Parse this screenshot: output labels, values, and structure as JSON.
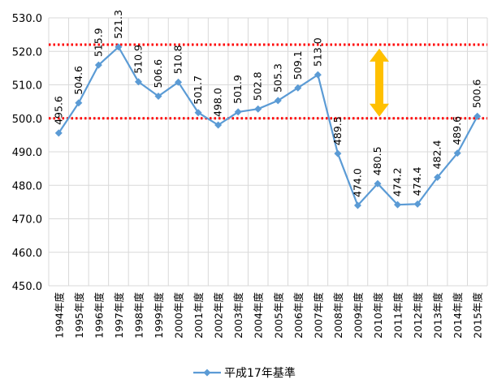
{
  "chart_data": {
    "type": "line",
    "categories": [
      "1994年度",
      "1995年度",
      "1996年度",
      "1997年度",
      "1998年度",
      "1999年度",
      "2000年度",
      "2001年度",
      "2002年度",
      "2003年度",
      "2004年度",
      "2005年度",
      "2006年度",
      "2007年度",
      "2008年度",
      "2009年度",
      "2010年度",
      "2011年度",
      "2012年度",
      "2013年度",
      "2014年度",
      "2015年度"
    ],
    "series": [
      {
        "name": "平成17年基準",
        "values": [
          495.6,
          504.6,
          515.9,
          521.3,
          510.9,
          506.6,
          510.8,
          501.7,
          498.0,
          501.9,
          502.8,
          505.3,
          509.1,
          513.0,
          489.5,
          474.0,
          480.5,
          474.2,
          474.4,
          482.4,
          489.6,
          500.6
        ],
        "labels": [
          "495.6",
          "504.6",
          "515.9",
          "521.3",
          "510.9",
          "506.6",
          "510.8",
          "501.7",
          "498.0",
          "501.9",
          "502.8",
          "505.3",
          "509.1",
          "513.0",
          "489.5",
          "474.0",
          "480.5",
          "474.2",
          "474.4",
          "482.4",
          "489.6",
          "500.6"
        ],
        "color": "#5b9bd5"
      }
    ],
    "ylim": [
      450.0,
      530.0
    ],
    "yticks": [
      "450.0",
      "460.0",
      "470.0",
      "480.0",
      "490.0",
      "500.0",
      "510.0",
      "520.0",
      "530.0"
    ],
    "grid": true,
    "legend": "bottom-center",
    "reference_lines": [
      {
        "y": 522.0,
        "color": "#ff0000",
        "style": "dotted"
      },
      {
        "y": 500.0,
        "color": "#ff0000",
        "style": "dotted"
      }
    ],
    "annotation_arrow": {
      "x_index": 16,
      "from": 500.0,
      "to": 521.3,
      "color": "#ffc000"
    }
  }
}
